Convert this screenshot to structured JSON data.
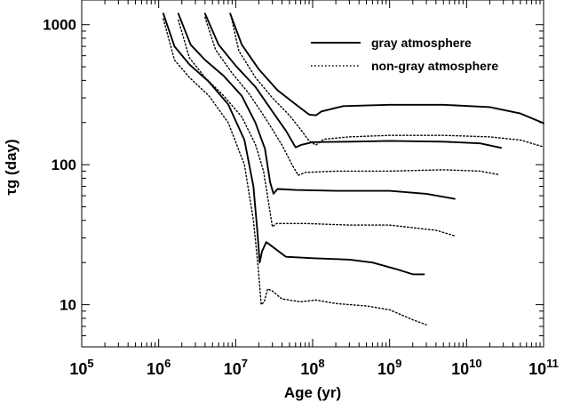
{
  "chart_data": {
    "type": "line",
    "xscale": "log",
    "yscale": "log",
    "xlim": [
      100000,
      100000000000
    ],
    "ylim": [
      5,
      1500
    ],
    "xlabel": "Age (yr)",
    "ylabel": "τg (day)",
    "xticks": [
      {
        "value": 100000,
        "base": "10",
        "exp": "5"
      },
      {
        "value": 1000000,
        "base": "10",
        "exp": "6"
      },
      {
        "value": 10000000,
        "base": "10",
        "exp": "7"
      },
      {
        "value": 100000000,
        "base": "10",
        "exp": "8"
      },
      {
        "value": 1000000000,
        "base": "10",
        "exp": "9"
      },
      {
        "value": 10000000000,
        "base": "10",
        "exp": "10"
      },
      {
        "value": 100000000000,
        "base": "10",
        "exp": "11"
      }
    ],
    "yticks": [
      {
        "value": 10,
        "label": "10"
      },
      {
        "value": 100,
        "label": "100"
      },
      {
        "value": 1000,
        "label": "1000"
      }
    ],
    "legend": {
      "position": "top-right",
      "entries": [
        {
          "label": "gray atmosphere",
          "style": "solid"
        },
        {
          "label": "non-gray atmosphere",
          "style": "dotted"
        }
      ]
    },
    "series": [
      {
        "style": "solid",
        "points": [
          [
            8500000.0,
            1200
          ],
          [
            12000000.0,
            720
          ],
          [
            20000000.0,
            480
          ],
          [
            35000000.0,
            340
          ],
          [
            60000000.0,
            270
          ],
          [
            90000000.0,
            228
          ],
          [
            110000000.0,
            225
          ],
          [
            130000000.0,
            240
          ],
          [
            250000000.0,
            262
          ],
          [
            1000000000.0,
            268
          ],
          [
            5000000000.0,
            268
          ],
          [
            20000000000.0,
            258
          ],
          [
            50000000000.0,
            232
          ],
          [
            100000000000.0,
            198
          ]
        ]
      },
      {
        "style": "dotted",
        "points": [
          [
            8600000.0,
            1180
          ],
          [
            11000000.0,
            650
          ],
          [
            18000000.0,
            420
          ],
          [
            30000000.0,
            300
          ],
          [
            50000000.0,
            225
          ],
          [
            70000000.0,
            178
          ],
          [
            90000000.0,
            148
          ],
          [
            110000000.0,
            138
          ],
          [
            140000000.0,
            152
          ],
          [
            300000000.0,
            158
          ],
          [
            1000000000.0,
            162
          ],
          [
            5000000000.0,
            162
          ],
          [
            20000000000.0,
            158
          ],
          [
            50000000000.0,
            150
          ],
          [
            100000000000.0,
            134
          ]
        ]
      },
      {
        "style": "solid",
        "points": [
          [
            4000000.0,
            1200
          ],
          [
            6000000.0,
            720
          ],
          [
            10000000.0,
            510
          ],
          [
            18000000.0,
            360
          ],
          [
            30000000.0,
            240
          ],
          [
            45000000.0,
            175
          ],
          [
            60000000.0,
            133
          ],
          [
            70000000.0,
            138
          ],
          [
            100000000.0,
            145
          ],
          [
            300000000.0,
            146
          ],
          [
            1000000000.0,
            148
          ],
          [
            5000000000.0,
            146
          ],
          [
            15000000000.0,
            142
          ],
          [
            28000000000.0,
            132
          ]
        ]
      },
      {
        "style": "dotted",
        "points": [
          [
            4000000.0,
            1130
          ],
          [
            5500000.0,
            660
          ],
          [
            9000000.0,
            450
          ],
          [
            15000000.0,
            320
          ],
          [
            25000000.0,
            210
          ],
          [
            40000000.0,
            138
          ],
          [
            55000000.0,
            98
          ],
          [
            65000000.0,
            84
          ],
          [
            80000000.0,
            88
          ],
          [
            200000000.0,
            90
          ],
          [
            1000000000.0,
            90
          ],
          [
            5000000000.0,
            92
          ],
          [
            15000000000.0,
            90
          ],
          [
            26000000000.0,
            85
          ]
        ]
      },
      {
        "style": "solid",
        "points": [
          [
            1800000.0,
            1200
          ],
          [
            2600000.0,
            720
          ],
          [
            4000000.0,
            560
          ],
          [
            7000000.0,
            430
          ],
          [
            12000000.0,
            310
          ],
          [
            18000000.0,
            200
          ],
          [
            24000000.0,
            130
          ],
          [
            28000000.0,
            75
          ],
          [
            31000000.0,
            62
          ],
          [
            35000000.0,
            67
          ],
          [
            60000000.0,
            66
          ],
          [
            200000000.0,
            65
          ],
          [
            1000000000.0,
            65
          ],
          [
            3000000000.0,
            62
          ],
          [
            7000000000.0,
            57
          ]
        ]
      },
      {
        "style": "dotted",
        "points": [
          [
            1800000.0,
            1080
          ],
          [
            2500000.0,
            580
          ],
          [
            4000000.0,
            420
          ],
          [
            7000000.0,
            310
          ],
          [
            12000000.0,
            220
          ],
          [
            18000000.0,
            140
          ],
          [
            23000000.0,
            90
          ],
          [
            27000000.0,
            52
          ],
          [
            30000000.0,
            36
          ],
          [
            34000000.0,
            38
          ],
          [
            80000000.0,
            38
          ],
          [
            300000000.0,
            37
          ],
          [
            1000000000.0,
            37
          ],
          [
            4000000000.0,
            34
          ],
          [
            7000000000.0,
            31
          ]
        ]
      },
      {
        "style": "solid",
        "points": [
          [
            1150000.0,
            1200
          ],
          [
            1600000.0,
            700
          ],
          [
            2500000.0,
            520
          ],
          [
            4500000.0,
            390
          ],
          [
            8000000.0,
            270
          ],
          [
            13000000.0,
            150
          ],
          [
            17000000.0,
            70
          ],
          [
            19000000.0,
            35
          ],
          [
            20500000.0,
            20
          ],
          [
            22000000.0,
            24
          ],
          [
            25000000.0,
            28
          ],
          [
            30000000.0,
            26
          ],
          [
            45000000.0,
            22
          ],
          [
            100000000.0,
            21.5
          ],
          [
            300000000.0,
            21
          ],
          [
            600000000.0,
            20
          ],
          [
            1200000000.0,
            18
          ],
          [
            2000000000.0,
            16.5
          ],
          [
            2800000000.0,
            16.5
          ]
        ]
      },
      {
        "style": "dotted",
        "points": [
          [
            1150000.0,
            1100
          ],
          [
            1600000.0,
            560
          ],
          [
            2500000.0,
            420
          ],
          [
            4500000.0,
            310
          ],
          [
            8000000.0,
            200
          ],
          [
            13000000.0,
            100
          ],
          [
            17000000.0,
            40
          ],
          [
            19500000.0,
            19
          ],
          [
            21500000.0,
            10
          ],
          [
            23500000.0,
            10.5
          ],
          [
            26000000.0,
            13
          ],
          [
            30000000.0,
            12.5
          ],
          [
            40000000.0,
            11
          ],
          [
            70000000.0,
            10.5
          ],
          [
            110000000.0,
            10.8
          ],
          [
            200000000.0,
            10.2
          ],
          [
            500000000.0,
            9.8
          ],
          [
            1000000000.0,
            9.2
          ],
          [
            2000000000.0,
            7.8
          ],
          [
            3000000000.0,
            7.2
          ]
        ]
      }
    ]
  }
}
